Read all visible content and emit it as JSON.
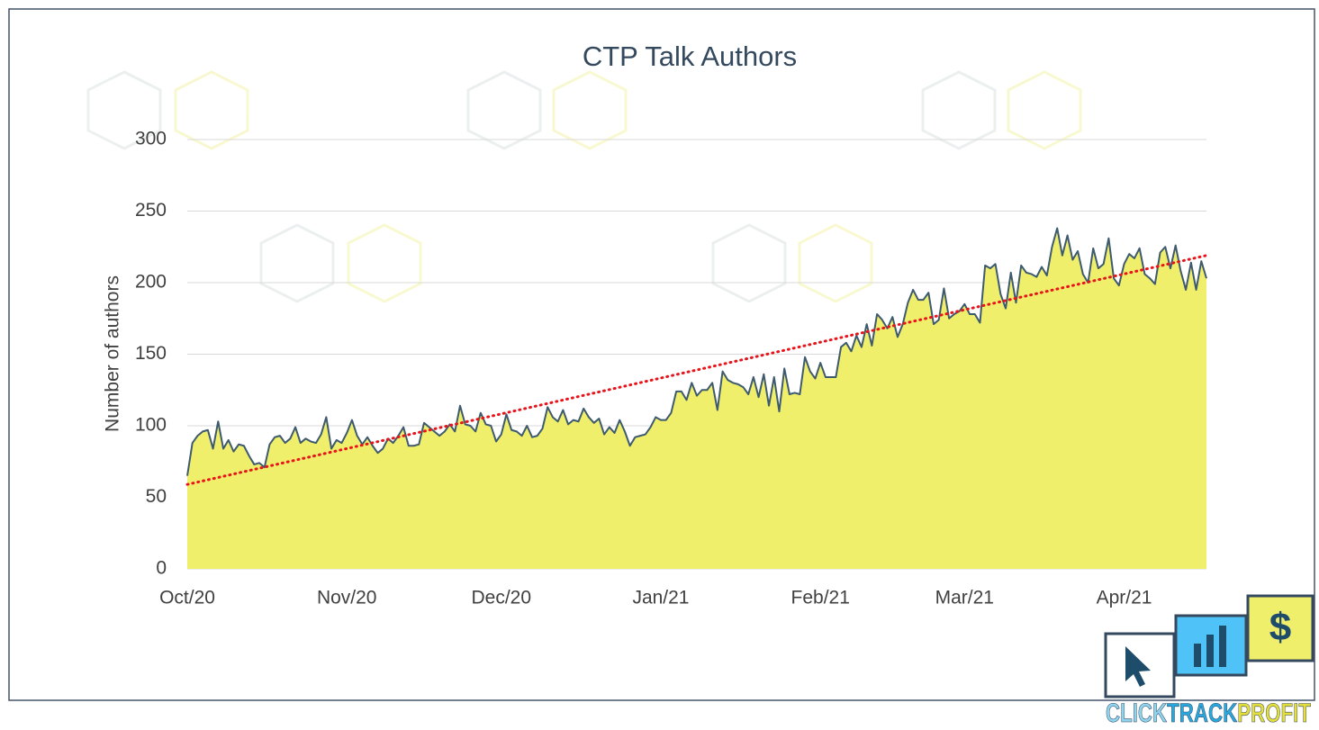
{
  "chart_data": {
    "type": "area",
    "title": "CTP Talk Authors",
    "y_label": "Number of authors",
    "color": "#f0ef6b",
    "line_color": "#3e5a6e",
    "grid": true,
    "x": [
      0,
      1,
      2,
      3,
      4,
      5,
      6,
      7,
      8,
      9,
      10,
      11,
      12,
      13,
      14,
      15,
      16,
      17,
      18,
      19,
      20,
      21,
      22,
      23,
      24,
      25,
      26,
      27,
      28,
      29,
      30,
      31,
      32,
      33,
      34,
      35,
      36,
      37,
      38,
      39,
      40,
      41,
      42,
      43,
      44,
      45,
      46,
      47,
      48,
      49,
      50,
      51,
      52,
      53,
      54,
      55,
      56,
      57,
      58,
      59,
      60,
      61,
      62,
      63,
      64,
      65,
      66,
      67,
      68,
      69,
      70,
      71,
      72,
      73,
      74,
      75,
      76,
      77,
      78,
      79,
      80,
      81,
      82,
      83,
      84,
      85,
      86,
      87,
      88,
      89,
      90,
      91,
      92,
      93,
      94,
      95,
      96,
      97,
      98,
      99,
      100,
      101,
      102,
      103,
      104,
      105,
      106,
      107,
      108,
      109,
      110,
      111,
      112,
      113,
      114,
      115,
      116,
      117,
      118,
      119,
      120,
      121,
      122,
      123,
      124,
      125,
      126,
      127,
      128,
      129,
      130,
      131,
      132,
      133,
      134,
      135,
      136,
      137,
      138,
      139,
      140,
      141,
      142,
      143,
      144,
      145,
      146,
      147,
      148,
      149,
      150,
      151,
      152,
      153,
      154,
      155,
      156,
      157,
      158,
      159,
      160,
      161,
      162,
      163,
      164,
      165,
      166,
      167,
      168,
      169,
      170,
      171,
      172,
      173,
      174,
      175,
      176,
      177,
      178,
      179,
      180,
      181,
      182,
      183,
      184,
      185,
      186,
      187,
      188,
      189,
      190,
      191,
      192,
      193,
      194,
      195,
      196,
      197,
      198
    ],
    "values": [
      65,
      88,
      93,
      96,
      97,
      84,
      103,
      84,
      90,
      82,
      87,
      86,
      79,
      73,
      74,
      71,
      87,
      92,
      93,
      88,
      91,
      99,
      88,
      91,
      89,
      88,
      94,
      106,
      84,
      90,
      88,
      95,
      104,
      93,
      87,
      92,
      86,
      81,
      84,
      91,
      88,
      93,
      99,
      86,
      86,
      87,
      102,
      99,
      96,
      93,
      96,
      101,
      96,
      114,
      101,
      100,
      96,
      109,
      101,
      100,
      89,
      94,
      108,
      97,
      96,
      93,
      100,
      92,
      93,
      98,
      113,
      106,
      103,
      111,
      101,
      104,
      103,
      112,
      106,
      102,
      105,
      94,
      99,
      95,
      104,
      96,
      86,
      92,
      93,
      94,
      99,
      106,
      104,
      104,
      109,
      124,
      124,
      118,
      130,
      121,
      125,
      125,
      130,
      111,
      138,
      132,
      130,
      129,
      127,
      122,
      134,
      120,
      136,
      114,
      134,
      110,
      140,
      122,
      123,
      122,
      148,
      138,
      133,
      144,
      134,
      134,
      134,
      155,
      158,
      152,
      163,
      155,
      171,
      156,
      178,
      174,
      168,
      176,
      162,
      171,
      186,
      195,
      188,
      188,
      193,
      171,
      174,
      196,
      175,
      178,
      180,
      185,
      178,
      178,
      172,
      212,
      210,
      213,
      192,
      182,
      207,
      186,
      212,
      207,
      206,
      204,
      211,
      205,
      225,
      238,
      219,
      233,
      216,
      222,
      206,
      200,
      224,
      210,
      213,
      231,
      203,
      198,
      213,
      220,
      217,
      224,
      206,
      203,
      199,
      221,
      225,
      210,
      226,
      208,
      195,
      214,
      195,
      215,
      203
    ],
    "trendline": {
      "color": "#e8141b",
      "x": [
        0,
        198
      ],
      "values": [
        59,
        219
      ]
    },
    "xlim": [
      0,
      198
    ],
    "xticks": [
      {
        "value": 0,
        "label": "Oct/20"
      },
      {
        "value": 31,
        "label": "Nov/20"
      },
      {
        "value": 61,
        "label": "Dec/20"
      },
      {
        "value": 92,
        "label": "Jan/21"
      },
      {
        "value": 123,
        "label": "Feb/21"
      },
      {
        "value": 151,
        "label": "Mar/21"
      },
      {
        "value": 182,
        "label": "Apr/21"
      }
    ],
    "ylim": [
      0,
      300
    ],
    "yticks": [
      0,
      50,
      100,
      150,
      200,
      250,
      300
    ]
  },
  "logo": {
    "parts": [
      {
        "text": "CLICK",
        "color": "#8fd3ef"
      },
      {
        "text": "TRACK",
        "color": "#29a8e0"
      },
      {
        "text": "PROFIT",
        "color": "#e5df3c"
      }
    ]
  }
}
